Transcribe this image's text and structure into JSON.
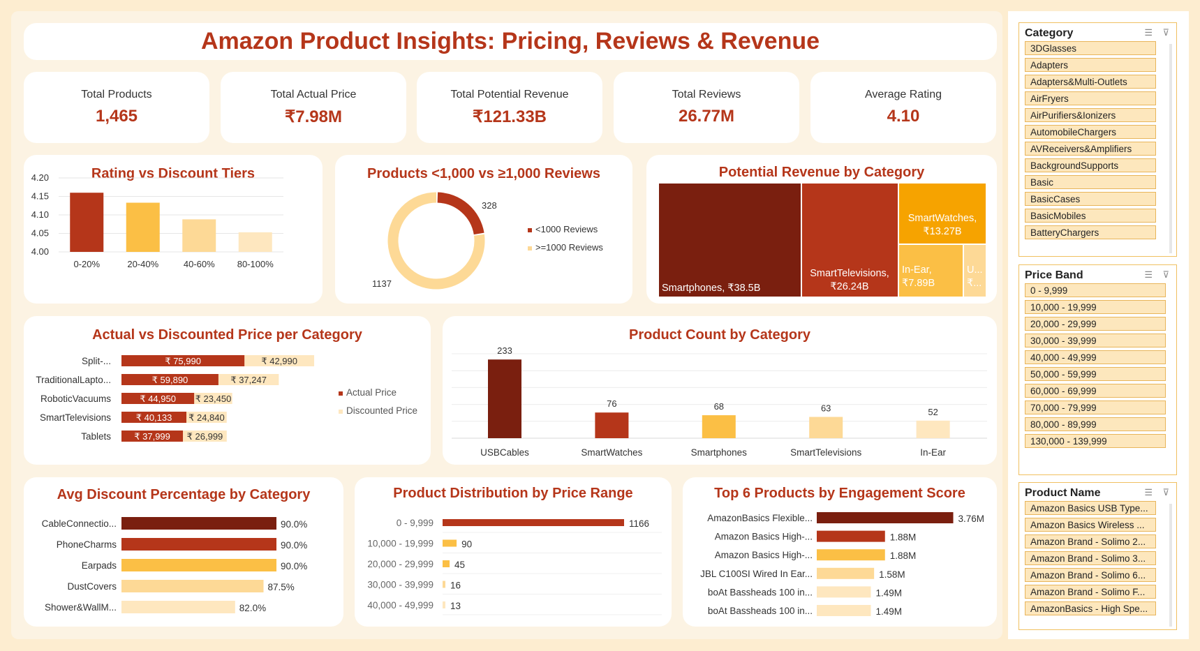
{
  "title": "Amazon Product Insights: Pricing, Reviews & Revenue",
  "kpis": [
    {
      "label": "Total Products",
      "value": "1,465"
    },
    {
      "label": "Total Actual Price",
      "value": "₹7.98M"
    },
    {
      "label": "Total Potential Revenue",
      "value": "₹121.33B"
    },
    {
      "label": "Total Reviews",
      "value": "26.77M"
    },
    {
      "label": "Average Rating",
      "value": "4.10"
    }
  ],
  "colors": {
    "dark": "#7a1f0f",
    "red": "#b5361a",
    "amber": "#f6a300",
    "gold": "#fbbf45",
    "light": "#fdd996",
    "pale": "#fee7bf",
    "accent_text": "#b5361a"
  },
  "chart_data": [
    {
      "id": "rating_vs_discount",
      "type": "bar",
      "title": "Rating vs Discount Tiers",
      "categories": [
        "0-20%",
        "20-40%",
        "40-60%",
        "80-100%"
      ],
      "values": [
        4.16,
        4.133,
        4.088,
        4.053
      ],
      "ylim": [
        4.0,
        4.2
      ],
      "yticks": [
        "4.00",
        "4.05",
        "4.10",
        "4.15",
        "4.20"
      ],
      "grid": true
    },
    {
      "id": "reviews_split",
      "type": "pie",
      "title": "Products <1,000 vs ≥1,000 Reviews",
      "series": [
        {
          "name": "<1000 Reviews",
          "value": 328
        },
        {
          "name": ">=1000 Reviews",
          "value": 1137
        }
      ],
      "data_labels": [
        "328",
        "1137"
      ],
      "legend": "right"
    },
    {
      "id": "revenue_treemap",
      "type": "heatmap",
      "title": "Potential Revenue by Category",
      "items": [
        {
          "label": "Smartphones, ₹38.5B",
          "value": 38.5
        },
        {
          "label": "SmartTelevisions, ₹26.24B",
          "value": 26.24
        },
        {
          "label": "SmartWatches, ₹13.27B",
          "value": 13.27
        },
        {
          "label": "In-Ear, ₹7.89B",
          "value": 7.89
        },
        {
          "label": "U... ₹...",
          "value": 2.0
        }
      ]
    },
    {
      "id": "actual_vs_discounted",
      "type": "bar",
      "title": "Actual vs Discounted Price per Category",
      "categories": [
        "Split-...",
        "TraditionalLapto...",
        "RoboticVacuums",
        "SmartTelevisions",
        "Tablets"
      ],
      "series": [
        {
          "name": "Actual Price",
          "values": [
            75990,
            59890,
            44950,
            40133,
            37999
          ],
          "labels": [
            "₹ 75,990",
            "₹ 59,890",
            "₹ 44,950",
            "₹ 40,133",
            "₹ 37,999"
          ]
        },
        {
          "name": "Discounted Price",
          "values": [
            42990,
            37247,
            23450,
            24840,
            26999
          ],
          "labels": [
            "₹ 42,990",
            "₹ 37,247",
            "₹ 23,450",
            "₹ 24,840",
            "₹ 26,999"
          ]
        }
      ],
      "legend": "right"
    },
    {
      "id": "product_count",
      "type": "bar",
      "title": "Product Count by Category",
      "categories": [
        "USBCables",
        "SmartWatches",
        "Smartphones",
        "SmartTelevisions",
        "In-Ear"
      ],
      "values": [
        233,
        76,
        68,
        63,
        52
      ],
      "ylim": [
        0,
        250
      ],
      "grid": true
    },
    {
      "id": "avg_discount",
      "type": "bar",
      "title": "Avg Discount Percentage by Category",
      "categories": [
        "CableConnectio...",
        "PhoneCharms",
        "Earpads",
        "DustCovers",
        "Shower&WallM..."
      ],
      "values": [
        90.0,
        90.0,
        90.0,
        87.5,
        82.0
      ],
      "labels": [
        "90.0%",
        "90.0%",
        "90.0%",
        "87.5%",
        "82.0%"
      ],
      "xlim": [
        80,
        90
      ]
    },
    {
      "id": "price_distribution",
      "type": "bar",
      "title": "Product Distribution by Price Range",
      "categories": [
        "0 - 9,999",
        "10,000 - 19,999",
        "20,000 - 29,999",
        "30,000 - 39,999",
        "40,000 - 49,999"
      ],
      "values": [
        1166,
        90,
        45,
        16,
        13
      ]
    },
    {
      "id": "engagement",
      "type": "bar",
      "title": "Top 6 Products by Engagement Score",
      "categories": [
        "AmazonBasics Flexible...",
        "Amazon Basics High-...",
        "Amazon Basics High-...",
        "JBL C100SI Wired In Ear...",
        "boAt Bassheads 100 in...",
        "boAt Bassheads 100 in..."
      ],
      "values": [
        3.76,
        1.88,
        1.88,
        1.58,
        1.49,
        1.49
      ],
      "labels": [
        "3.76M",
        "1.88M",
        "1.88M",
        "1.58M",
        "1.49M",
        "1.49M"
      ]
    }
  ],
  "slicers": [
    {
      "title": "Category",
      "items": [
        "3DGlasses",
        "Adapters",
        "Adapters&Multi-Outlets",
        "AirFryers",
        "AirPurifiers&Ionizers",
        "AutomobileChargers",
        "AVReceivers&Amplifiers",
        "BackgroundSupports",
        "Basic",
        "BasicCases",
        "BasicMobiles",
        "BatteryChargers"
      ]
    },
    {
      "title": "Price Band",
      "items": [
        "0 - 9,999",
        "10,000 - 19,999",
        "20,000 - 29,999",
        "30,000 - 39,999",
        "40,000 - 49,999",
        "50,000 - 59,999",
        "60,000 - 69,999",
        "70,000 - 79,999",
        "80,000 - 89,999",
        "130,000 - 139,999"
      ]
    },
    {
      "title": "Product Name",
      "items": [
        "Amazon Basics USB Type...",
        "Amazon Basics Wireless ...",
        "Amazon Brand - Solimo 2...",
        "Amazon Brand - Solimo 3...",
        "Amazon Brand - Solimo 6...",
        "Amazon Brand - Solimo F...",
        "AmazonBasics - High Spe..."
      ]
    }
  ]
}
